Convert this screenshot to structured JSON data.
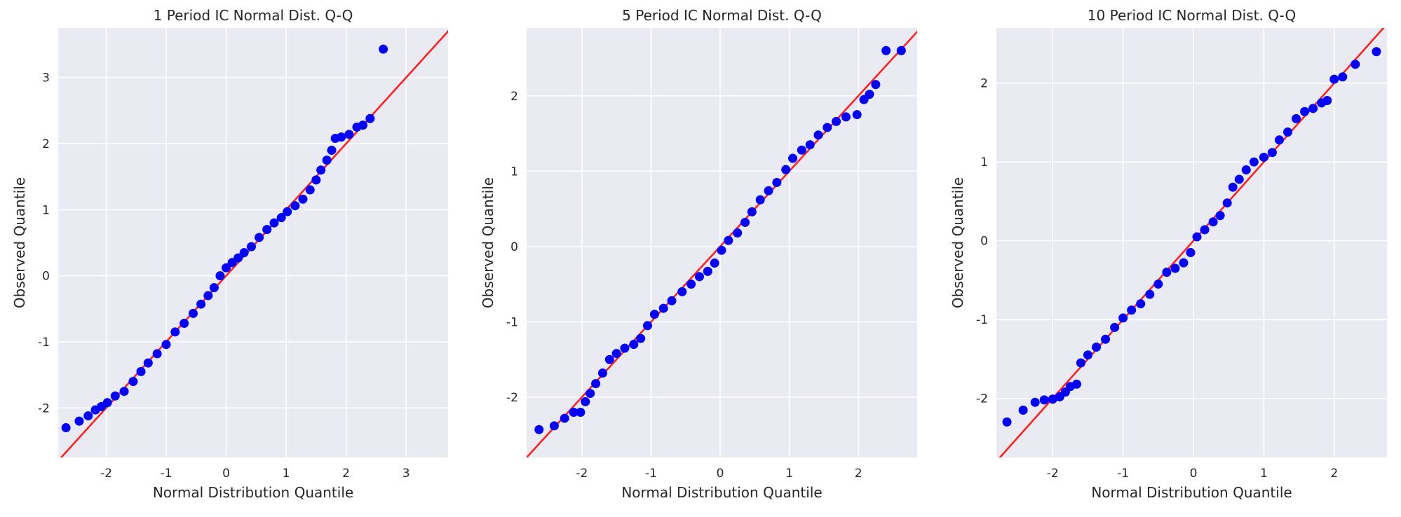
{
  "chart_data": [
    {
      "type": "scatter",
      "title": "1 Period IC Normal Dist. Q-Q",
      "xlabel": "Normal Distribution Quantile",
      "ylabel": "Observed Quantile",
      "xlim": [
        -2.8,
        3.7
      ],
      "ylim": [
        -2.75,
        3.75
      ],
      "xticks": [
        -2,
        -1,
        0,
        1,
        2,
        3
      ],
      "yticks": [
        -2,
        -1,
        0,
        1,
        2,
        3
      ],
      "xtick_labels": [
        "-2",
        "-1",
        "0",
        "1",
        "2",
        "3"
      ],
      "ytick_labels": [
        "-2",
        "-1",
        "0",
        "1",
        "2",
        "3"
      ],
      "grid": true,
      "series": [
        {
          "color": "#0000ff",
          "points": [
            [
              -2.67,
              -2.3
            ],
            [
              -2.45,
              -2.2
            ],
            [
              -2.3,
              -2.12
            ],
            [
              -2.18,
              -2.03
            ],
            [
              -2.08,
              -1.98
            ],
            [
              -1.98,
              -1.92
            ],
            [
              -1.85,
              -1.82
            ],
            [
              -1.7,
              -1.75
            ],
            [
              -1.55,
              -1.6
            ],
            [
              -1.42,
              -1.45
            ],
            [
              -1.3,
              -1.32
            ],
            [
              -1.15,
              -1.18
            ],
            [
              -1.0,
              -1.04
            ],
            [
              -0.85,
              -0.85
            ],
            [
              -0.7,
              -0.72
            ],
            [
              -0.55,
              -0.57
            ],
            [
              -0.42,
              -0.43
            ],
            [
              -0.3,
              -0.3
            ],
            [
              -0.2,
              -0.18
            ],
            [
              -0.1,
              0.0
            ],
            [
              0.0,
              0.12
            ],
            [
              0.1,
              0.2
            ],
            [
              0.2,
              0.27
            ],
            [
              0.3,
              0.35
            ],
            [
              0.42,
              0.44
            ],
            [
              0.55,
              0.58
            ],
            [
              0.68,
              0.7
            ],
            [
              0.8,
              0.8
            ],
            [
              0.92,
              0.88
            ],
            [
              1.02,
              0.97
            ],
            [
              1.15,
              1.06
            ],
            [
              1.28,
              1.16
            ],
            [
              1.4,
              1.3
            ],
            [
              1.5,
              1.45
            ],
            [
              1.58,
              1.6
            ],
            [
              1.68,
              1.75
            ],
            [
              1.76,
              1.9
            ],
            [
              1.82,
              2.08
            ],
            [
              1.92,
              2.1
            ],
            [
              2.05,
              2.14
            ],
            [
              2.18,
              2.25
            ],
            [
              2.28,
              2.28
            ],
            [
              2.4,
              2.38
            ],
            [
              2.62,
              3.43
            ]
          ]
        }
      ],
      "reference_line": {
        "color": "#ff2020",
        "slope": 1.0,
        "intercept": 0.0
      }
    },
    {
      "type": "scatter",
      "title": "5 Period IC Normal Dist. Q-Q",
      "xlabel": "Normal Distribution Quantile",
      "ylabel": "Observed Quantile",
      "xlim": [
        -2.8,
        2.85
      ],
      "ylim": [
        -2.8,
        2.9
      ],
      "xticks": [
        -2,
        -1,
        0,
        1,
        2
      ],
      "yticks": [
        -2,
        -1,
        0,
        1,
        2
      ],
      "xtick_labels": [
        "-2",
        "-1",
        "0",
        "1",
        "2"
      ],
      "ytick_labels": [
        "-2",
        "-1",
        "0",
        "1",
        "2"
      ],
      "grid": true,
      "series": [
        {
          "color": "#0000ff",
          "points": [
            [
              -2.62,
              -2.43
            ],
            [
              -2.4,
              -2.38
            ],
            [
              -2.25,
              -2.28
            ],
            [
              -2.12,
              -2.2
            ],
            [
              -2.02,
              -2.2
            ],
            [
              -1.95,
              -2.06
            ],
            [
              -1.88,
              -1.95
            ],
            [
              -1.8,
              -1.82
            ],
            [
              -1.7,
              -1.68
            ],
            [
              -1.6,
              -1.5
            ],
            [
              -1.5,
              -1.42
            ],
            [
              -1.38,
              -1.35
            ],
            [
              -1.25,
              -1.3
            ],
            [
              -1.15,
              -1.22
            ],
            [
              -1.05,
              -1.05
            ],
            [
              -0.95,
              -0.9
            ],
            [
              -0.82,
              -0.82
            ],
            [
              -0.7,
              -0.72
            ],
            [
              -0.55,
              -0.6
            ],
            [
              -0.42,
              -0.5
            ],
            [
              -0.3,
              -0.4
            ],
            [
              -0.18,
              -0.33
            ],
            [
              -0.08,
              -0.22
            ],
            [
              0.02,
              -0.05
            ],
            [
              0.12,
              0.08
            ],
            [
              0.25,
              0.18
            ],
            [
              0.36,
              0.32
            ],
            [
              0.46,
              0.46
            ],
            [
              0.58,
              0.62
            ],
            [
              0.7,
              0.74
            ],
            [
              0.82,
              0.85
            ],
            [
              0.95,
              1.02
            ],
            [
              1.05,
              1.17
            ],
            [
              1.18,
              1.28
            ],
            [
              1.3,
              1.35
            ],
            [
              1.42,
              1.48
            ],
            [
              1.55,
              1.58
            ],
            [
              1.68,
              1.66
            ],
            [
              1.82,
              1.72
            ],
            [
              1.98,
              1.75
            ],
            [
              2.08,
              1.95
            ],
            [
              2.16,
              2.02
            ],
            [
              2.25,
              2.15
            ],
            [
              2.4,
              2.6
            ],
            [
              2.62,
              2.6
            ]
          ]
        }
      ],
      "reference_line": {
        "color": "#ff2020",
        "slope": 1.0,
        "intercept": 0.0
      }
    },
    {
      "type": "scatter",
      "title": "10 Period IC Normal Dist. Q-Q",
      "xlabel": "Normal Distribution Quantile",
      "ylabel": "Observed Quantile",
      "xlim": [
        -2.8,
        2.75
      ],
      "ylim": [
        -2.75,
        2.7
      ],
      "xticks": [
        -2,
        -1,
        0,
        1,
        2
      ],
      "yticks": [
        -2,
        -1,
        0,
        1,
        2
      ],
      "xtick_labels": [
        "-2",
        "-1",
        "0",
        "1",
        "2"
      ],
      "ytick_labels": [
        "-2",
        "-1",
        "0",
        "1",
        "2"
      ],
      "grid": true,
      "series": [
        {
          "color": "#0000ff",
          "points": [
            [
              -2.65,
              -2.3
            ],
            [
              -2.42,
              -2.15
            ],
            [
              -2.25,
              -2.05
            ],
            [
              -2.12,
              -2.02
            ],
            [
              -2.0,
              -2.01
            ],
            [
              -1.9,
              -1.98
            ],
            [
              -1.82,
              -1.92
            ],
            [
              -1.75,
              -1.85
            ],
            [
              -1.66,
              -1.82
            ],
            [
              -1.6,
              -1.55
            ],
            [
              -1.5,
              -1.45
            ],
            [
              -1.38,
              -1.35
            ],
            [
              -1.25,
              -1.25
            ],
            [
              -1.12,
              -1.1
            ],
            [
              -1.0,
              -0.98
            ],
            [
              -0.88,
              -0.88
            ],
            [
              -0.75,
              -0.8
            ],
            [
              -0.62,
              -0.68
            ],
            [
              -0.5,
              -0.55
            ],
            [
              -0.38,
              -0.4
            ],
            [
              -0.26,
              -0.35
            ],
            [
              -0.14,
              -0.28
            ],
            [
              -0.04,
              -0.15
            ],
            [
              0.05,
              0.05
            ],
            [
              0.16,
              0.14
            ],
            [
              0.28,
              0.24
            ],
            [
              0.38,
              0.32
            ],
            [
              0.48,
              0.48
            ],
            [
              0.56,
              0.68
            ],
            [
              0.65,
              0.78
            ],
            [
              0.75,
              0.9
            ],
            [
              0.86,
              1.0
            ],
            [
              1.0,
              1.06
            ],
            [
              1.12,
              1.12
            ],
            [
              1.22,
              1.28
            ],
            [
              1.34,
              1.38
            ],
            [
              1.46,
              1.55
            ],
            [
              1.58,
              1.64
            ],
            [
              1.7,
              1.68
            ],
            [
              1.82,
              1.75
            ],
            [
              1.9,
              1.78
            ],
            [
              2.0,
              2.05
            ],
            [
              2.12,
              2.08
            ],
            [
              2.3,
              2.24
            ],
            [
              2.6,
              2.4
            ]
          ]
        }
      ],
      "reference_line": {
        "color": "#ff2020",
        "slope": 1.0,
        "intercept": 0.0
      }
    }
  ]
}
